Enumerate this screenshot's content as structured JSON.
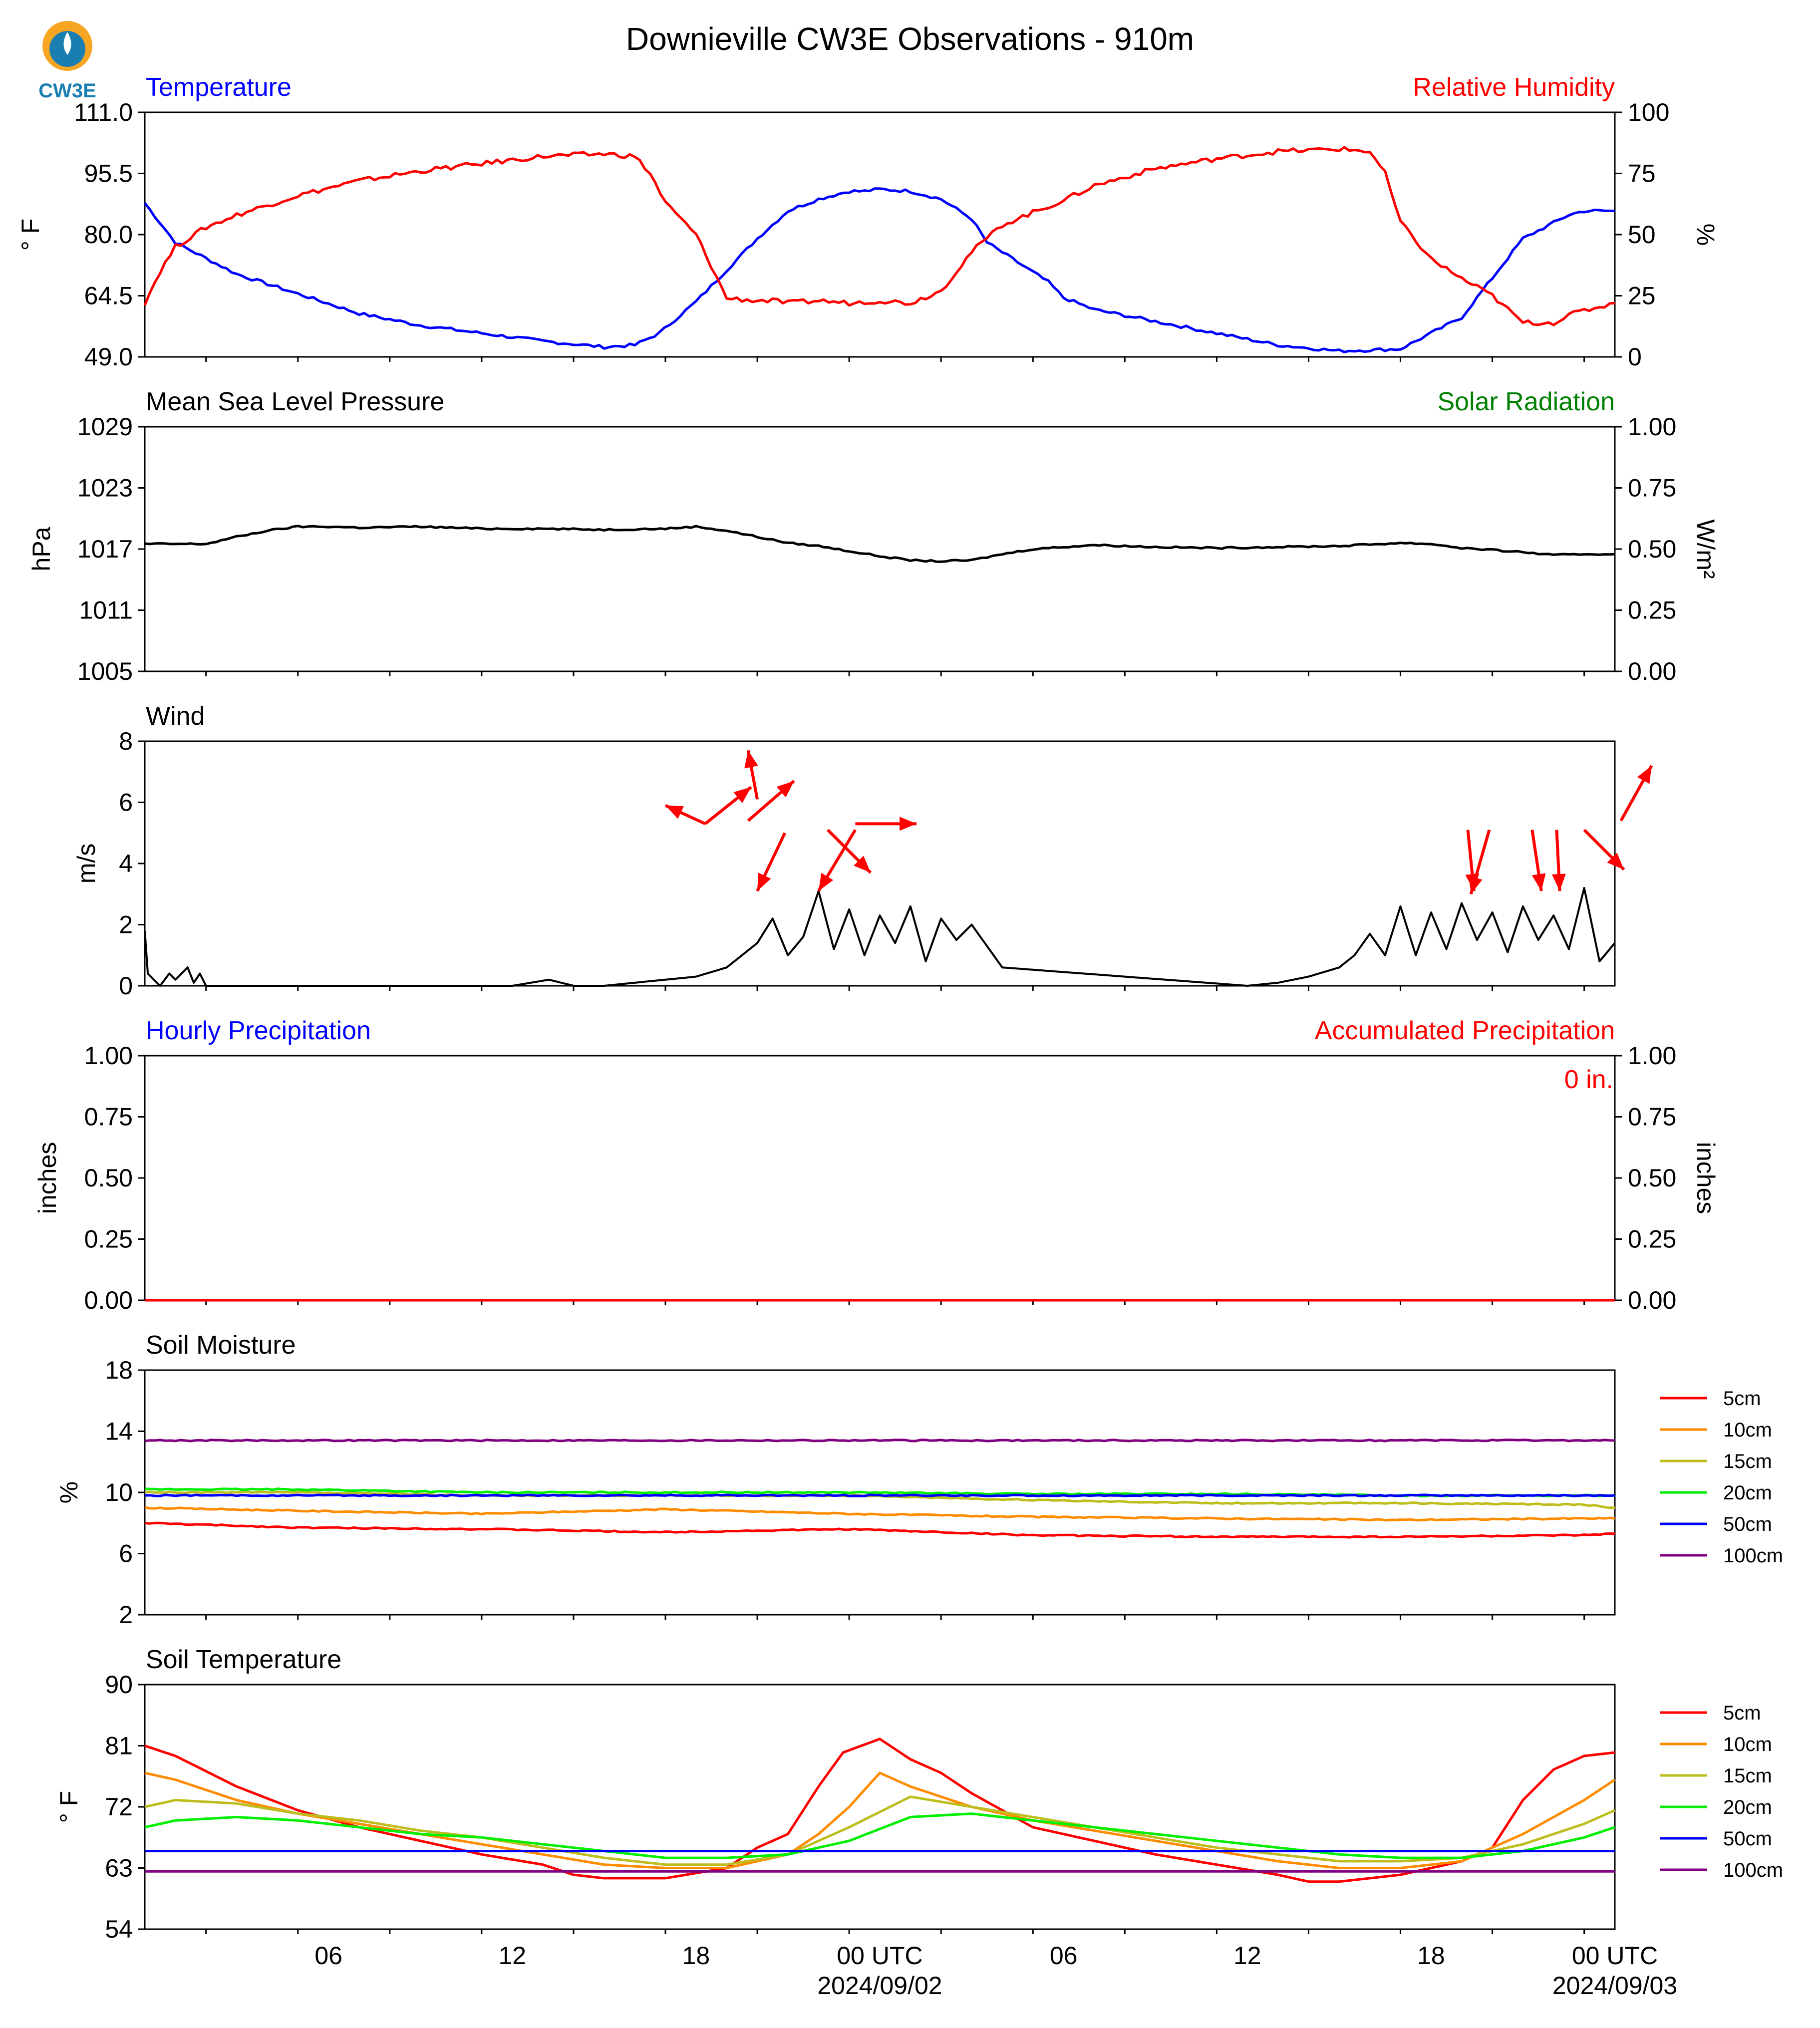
{
  "colors": {
    "blue": "#0000ff",
    "red": "#ff0000",
    "green": "#008000",
    "black": "#000000",
    "orange": "#ff8c00",
    "olive": "#bdbd1e",
    "lime": "#00ee00",
    "purple": "#800080",
    "logo": "#1a7fb0"
  },
  "header": {
    "title": "Downieville CW3E Observations - 910m",
    "logo_text": "CW3E"
  },
  "x_axis": {
    "tick_labels": [
      "06",
      "12",
      "18",
      "00 UTC",
      "06",
      "12",
      "18",
      "00 UTC"
    ],
    "date_labels": [
      "2024/09/02",
      "2024/09/03"
    ]
  },
  "chart_data": [
    {
      "id": "temp_rh",
      "type": "line",
      "title_left": "Temperature",
      "title_right": "Relative Humidity",
      "ylabel_left": "° F",
      "ylabel_right": "%",
      "ylim_left": [
        49,
        111
      ],
      "ylim_right": [
        0,
        100
      ],
      "yticks_left": [
        "111.0",
        "95.5",
        "80.0",
        "64.5",
        "49.0"
      ],
      "yticks_right": [
        "100",
        "75",
        "50",
        "25",
        "0"
      ],
      "xlim_hours": [
        -5,
        43
      ],
      "series": [
        {
          "axis": "left",
          "color": "blue",
          "x": [
            -5,
            -4.5,
            -4,
            -3,
            -2,
            0,
            2,
            4,
            6,
            8,
            10,
            11,
            11.8,
            13,
            14,
            15,
            16,
            17,
            18,
            18.5,
            19,
            20,
            21,
            22,
            22.5,
            23.5,
            24.5,
            25,
            26,
            28,
            30,
            32,
            34,
            36,
            38,
            39,
            40,
            41,
            41.5,
            42,
            43
          ],
          "y": [
            88,
            83,
            78,
            74,
            70,
            65,
            60,
            57,
            55,
            53,
            51.5,
            52,
            55,
            63,
            71,
            79,
            86,
            89,
            91,
            91,
            91.5,
            91,
            89,
            84,
            78,
            73,
            68,
            64,
            61,
            58,
            55,
            52,
            50.5,
            51,
            59,
            69,
            79,
            83,
            85,
            86,
            86
          ]
        },
        {
          "axis": "right",
          "color": "red",
          "x": [
            -5,
            -4.5,
            -4,
            -3,
            -2,
            -1,
            0,
            2,
            4,
            6,
            8,
            10,
            11,
            11.5,
            12,
            13,
            14,
            15,
            15.5,
            16,
            17,
            18,
            19,
            20,
            21,
            22,
            23,
            24,
            25,
            26,
            28,
            30,
            32,
            34,
            35,
            35.5,
            36,
            37,
            38,
            39,
            40,
            41,
            41.5,
            42,
            43
          ],
          "y": [
            22,
            35,
            45,
            53,
            58,
            62,
            66,
            72,
            76,
            79,
            82,
            83,
            82,
            75,
            63,
            50,
            24,
            23,
            23,
            22,
            23,
            22,
            23,
            22,
            27,
            43,
            54,
            59,
            64,
            70,
            77,
            81,
            84,
            85,
            84,
            75,
            55,
            40,
            32,
            25,
            14,
            14,
            17,
            19,
            22
          ]
        }
      ]
    },
    {
      "id": "pressure",
      "type": "line",
      "title_left": "Mean Sea Level Pressure",
      "title_right": "Solar Radiation",
      "ylabel_left": "hPa",
      "ylabel_right": "W/m²",
      "ylim_left": [
        1005,
        1029
      ],
      "ylim_right": [
        0,
        1
      ],
      "yticks_left": [
        "1029",
        "1023",
        "1017",
        "1011",
        "1005"
      ],
      "yticks_right": [
        "1.00",
        "0.75",
        "0.50",
        "0.25",
        "0.00"
      ],
      "series": [
        {
          "axis": "left",
          "color": "black",
          "x": [
            -5,
            -4,
            -3,
            -2,
            -1,
            0,
            1,
            2,
            4,
            6,
            8,
            10,
            12,
            13,
            14,
            15,
            16,
            17,
            18,
            19,
            20,
            21,
            22,
            23,
            24,
            26,
            28,
            30,
            32,
            34,
            36,
            37,
            38,
            39,
            40,
            41,
            42,
            43
          ],
          "y": [
            1017.5,
            1017.5,
            1017.5,
            1018.2,
            1018.8,
            1019.2,
            1019.2,
            1019.1,
            1019.2,
            1019,
            1019,
            1018.9,
            1019,
            1019.2,
            1018.8,
            1018.2,
            1017.6,
            1017.3,
            1016.8,
            1016.3,
            1015.9,
            1015.8,
            1015.9,
            1016.5,
            1017,
            1017.4,
            1017.2,
            1017.1,
            1017.2,
            1017.3,
            1017.6,
            1017.5,
            1017.1,
            1016.9,
            1016.7,
            1016.4,
            1016.5,
            1016.5
          ]
        }
      ]
    },
    {
      "id": "wind",
      "type": "line",
      "title_left": "Wind",
      "ylabel_left": "m/s",
      "ylim_left": [
        0,
        8
      ],
      "yticks_left": [
        "8",
        "6",
        "4",
        "2",
        "0"
      ],
      "series": [
        {
          "axis": "left",
          "color": "black",
          "x": [
            -5,
            -4.9,
            -4.7,
            -4.5,
            -4.2,
            -4,
            -3.6,
            -3.4,
            -3.2,
            -3,
            0,
            7,
            8.2,
            9,
            10,
            11,
            12,
            13,
            14,
            14.5,
            15,
            15.5,
            16,
            16.5,
            17,
            17.5,
            18,
            18.5,
            19,
            19.5,
            20,
            20.5,
            21,
            21.5,
            22,
            23,
            31,
            32,
            33,
            34,
            34.5,
            35,
            35.5,
            36,
            36.5,
            37,
            37.5,
            38,
            38.5,
            39,
            39.5,
            40,
            40.5,
            41,
            41.5,
            42,
            42.5,
            43
          ],
          "y": [
            1.8,
            0.4,
            0.2,
            0,
            0.4,
            0.2,
            0.6,
            0.1,
            0.4,
            0,
            0,
            0,
            0.2,
            0,
            0,
            0.1,
            0.2,
            0.3,
            0.6,
            1.0,
            1.4,
            2.2,
            1.0,
            1.6,
            3.1,
            1.2,
            2.5,
            1.0,
            2.3,
            1.4,
            2.6,
            0.8,
            2.2,
            1.5,
            2.0,
            0.6,
            0,
            0.1,
            0.3,
            0.6,
            1.0,
            1.7,
            1.0,
            2.6,
            1.0,
            2.4,
            1.2,
            2.7,
            1.5,
            2.4,
            1.1,
            2.6,
            1.5,
            2.3,
            1.2,
            3.2,
            0.8,
            1.4
          ]
        }
      ],
      "arrows": [
        {
          "x": 13.3,
          "y": 5.3,
          "dx": -1.3,
          "dy": 0.6
        },
        {
          "x": 13.3,
          "y": 5.3,
          "dx": 1.5,
          "dy": 1.2
        },
        {
          "x": 14.7,
          "y": 5.4,
          "dx": 1.5,
          "dy": 1.3
        },
        {
          "x": 15.0,
          "y": 6.1,
          "dx": -0.3,
          "dy": 1.6
        },
        {
          "x": 15.9,
          "y": 5.0,
          "dx": -0.9,
          "dy": -1.9
        },
        {
          "x": 17.3,
          "y": 5.1,
          "dx": 1.4,
          "dy": -1.4
        },
        {
          "x": 18.2,
          "y": 5.3,
          "dx": 2.0,
          "dy": 0
        },
        {
          "x": 18.2,
          "y": 5.1,
          "dx": -1.2,
          "dy": -2.0
        },
        {
          "x": 38.2,
          "y": 5.1,
          "dx": 0.2,
          "dy": -2.0
        },
        {
          "x": 38.9,
          "y": 5.1,
          "dx": -0.6,
          "dy": -2.1
        },
        {
          "x": 40.3,
          "y": 5.1,
          "dx": 0.3,
          "dy": -2.0
        },
        {
          "x": 41.1,
          "y": 5.1,
          "dx": 0.1,
          "dy": -2.0
        },
        {
          "x": 42.0,
          "y": 5.1,
          "dx": 1.3,
          "dy": -1.3
        },
        {
          "x": 43.2,
          "y": 5.4,
          "dx": 1.0,
          "dy": 1.8
        }
      ]
    },
    {
      "id": "precip",
      "type": "line",
      "title_left": "Hourly Precipitation",
      "title_right": "Accumulated Precipitation",
      "ylabel_left": "inches",
      "ylabel_right": "inches",
      "ylim_left": [
        0,
        1
      ],
      "ylim_right": [
        0,
        1
      ],
      "yticks_left": [
        "1.00",
        "0.75",
        "0.50",
        "0.25",
        "0.00"
      ],
      "yticks_right": [
        "1.00",
        "0.75",
        "0.50",
        "0.25",
        "0.00"
      ],
      "annotation": "0 in.",
      "series": [
        {
          "axis": "left",
          "color": "red",
          "x": [
            -5,
            43
          ],
          "y": [
            0,
            0
          ]
        }
      ]
    },
    {
      "id": "soil_moisture",
      "type": "line",
      "title_left": "Soil Moisture",
      "ylabel_left": "%",
      "ylim_left": [
        2,
        18
      ],
      "yticks_left": [
        "18",
        "14",
        "10",
        "6",
        "2"
      ],
      "series": [
        {
          "name": "5cm",
          "color": "red",
          "x": [
            -5,
            0,
            6,
            12,
            18,
            24,
            30,
            36,
            42,
            43
          ],
          "y": [
            8.0,
            7.7,
            7.6,
            7.4,
            7.6,
            7.2,
            7.1,
            7.1,
            7.2,
            7.3
          ]
        },
        {
          "name": "10cm",
          "color": "orange",
          "x": [
            -5,
            0,
            6,
            12,
            18,
            24,
            30,
            36,
            42,
            43
          ],
          "y": [
            9.0,
            8.8,
            8.6,
            8.9,
            8.6,
            8.4,
            8.3,
            8.2,
            8.3,
            8.3
          ]
        },
        {
          "name": "15cm",
          "color": "olive",
          "x": [
            -5,
            0,
            6,
            12,
            18,
            24,
            30,
            36,
            42,
            43
          ],
          "y": [
            10.0,
            10.0,
            9.8,
            9.8,
            9.8,
            9.5,
            9.3,
            9.3,
            9.2,
            9.0
          ]
        },
        {
          "name": "20cm",
          "color": "lime",
          "x": [
            -5,
            0,
            6,
            12,
            18,
            24,
            30,
            36,
            42,
            43
          ],
          "y": [
            10.2,
            10.2,
            10.0,
            10.0,
            10.0,
            9.9,
            9.9,
            9.8,
            9.8,
            9.8
          ]
        },
        {
          "name": "50cm",
          "color": "blue",
          "x": [
            -5,
            43
          ],
          "y": [
            9.8,
            9.8
          ]
        },
        {
          "name": "100cm",
          "color": "purple",
          "x": [
            -5,
            43
          ],
          "y": [
            13.4,
            13.4
          ]
        }
      ]
    },
    {
      "id": "soil_temp",
      "type": "line",
      "title_left": "Soil Temperature",
      "ylabel_left": "° F",
      "ylim_left": [
        54,
        90
      ],
      "yticks_left": [
        "90",
        "81",
        "72",
        "63",
        "54"
      ],
      "series": [
        {
          "name": "5cm",
          "color": "red",
          "x": [
            -5,
            -4,
            -2,
            0,
            2,
            4,
            6,
            8,
            9,
            10,
            12,
            14,
            15,
            16,
            17,
            17.8,
            19,
            20,
            21,
            22,
            23,
            24,
            26,
            28,
            30,
            32,
            33,
            34,
            36,
            38,
            39,
            40,
            41,
            42,
            43
          ],
          "y": [
            81,
            79.5,
            75,
            71.5,
            69,
            67,
            65,
            63.5,
            62,
            61.5,
            61.5,
            63,
            66,
            68,
            75,
            80,
            82,
            79,
            77,
            74,
            71.5,
            69,
            67,
            65,
            63.5,
            62,
            61,
            61,
            62,
            64,
            66,
            73,
            77.5,
            79.5,
            80
          ]
        },
        {
          "name": "10cm",
          "color": "orange",
          "x": [
            -5,
            -4,
            -2,
            0,
            2,
            4,
            6,
            8,
            10,
            12,
            14,
            16,
            17,
            18,
            19,
            20,
            22,
            24,
            26,
            28,
            30,
            32,
            34,
            36,
            38,
            40,
            42,
            43
          ],
          "y": [
            77,
            76,
            73,
            71,
            69.5,
            68,
            66.5,
            65,
            63.5,
            63,
            63,
            65,
            68,
            72,
            77,
            75,
            72,
            70,
            68.5,
            67,
            65.5,
            64,
            63,
            63,
            64,
            68,
            73,
            76
          ]
        },
        {
          "name": "15cm",
          "color": "olive",
          "x": [
            -5,
            -4,
            -2,
            0,
            2,
            4,
            6,
            8,
            10,
            12,
            14,
            16,
            18,
            20,
            22,
            24,
            26,
            28,
            30,
            32,
            34,
            36,
            38,
            40,
            42,
            43
          ],
          "y": [
            72,
            73,
            72.5,
            71,
            70,
            68.5,
            67.5,
            66,
            64.5,
            63.5,
            63.5,
            65,
            69,
            73.5,
            72,
            70.5,
            69,
            67.5,
            66,
            65,
            64,
            64,
            64.5,
            66.5,
            69.5,
            71.5
          ]
        },
        {
          "name": "20cm",
          "color": "lime",
          "x": [
            -5,
            -4,
            -2,
            0,
            2,
            4,
            6,
            8,
            10,
            12,
            14,
            16,
            18,
            20,
            22,
            24,
            26,
            28,
            30,
            32,
            34,
            36,
            38,
            40,
            42,
            43
          ],
          "y": [
            69,
            70,
            70.5,
            70,
            69,
            68,
            67.5,
            66.5,
            65.5,
            64.5,
            64.5,
            65,
            67,
            70.5,
            71,
            70,
            69,
            68,
            67,
            66,
            65,
            64.5,
            64.5,
            65.5,
            67.5,
            69
          ]
        },
        {
          "name": "50cm",
          "color": "blue",
          "x": [
            -5,
            43
          ],
          "y": [
            65.5,
            65.5
          ]
        },
        {
          "name": "100cm",
          "color": "purple",
          "x": [
            -5,
            43
          ],
          "y": [
            62.5,
            62.5
          ]
        }
      ]
    }
  ],
  "legend": {
    "items": [
      "5cm",
      "10cm",
      "15cm",
      "20cm",
      "50cm",
      "100cm"
    ]
  }
}
